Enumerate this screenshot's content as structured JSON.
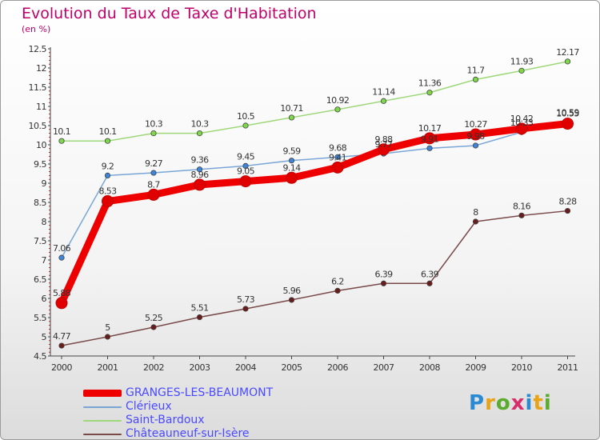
{
  "title": "Evolution du Taux de Taxe d'Habitation",
  "unit_label": "(en %)",
  "brand": {
    "letters": [
      "P",
      "r",
      "o",
      "x",
      "i",
      "t",
      "i"
    ],
    "colors": [
      "#2a8ad4",
      "#e8a317",
      "#5aab2e",
      "#d82c6b",
      "#2a8ad4",
      "#e8a317",
      "#5aab2e"
    ]
  },
  "chart_data": {
    "type": "line",
    "title": "Evolution du Taux de Taxe d'Habitation",
    "ylabel": "(en %)",
    "x": [
      "2000",
      "2001",
      "2002",
      "2003",
      "2004",
      "2005",
      "2006",
      "2007",
      "2008",
      "2009",
      "2010",
      "2011"
    ],
    "ylim": [
      4.5,
      12.5
    ],
    "yticks": [
      "4.5",
      "5",
      "5.5",
      "6",
      "6.5",
      "7",
      "7.5",
      "8",
      "8.5",
      "9",
      "9.5",
      "10",
      "10.5",
      "11",
      "11.5",
      "12",
      "12.5"
    ],
    "grid": false,
    "legend_position": "bottom-left",
    "series": [
      {
        "name": "GRANGES-LES-BEAUMONT",
        "color": "#ee0000",
        "width": 9,
        "marker_fill": "#e00000",
        "values": [
          5.88,
          8.53,
          8.7,
          8.96,
          9.05,
          9.14,
          9.41,
          9.88,
          10.17,
          10.27,
          10.42,
          10.55
        ],
        "labels": [
          "5.88",
          "8.53",
          "8.7",
          "8.96",
          "9.05",
          "9.14",
          "9.41",
          "9.88",
          "10.17",
          "10.27",
          "10.42",
          "10.55"
        ]
      },
      {
        "name": "Clérieux",
        "color": "#7aa6d6",
        "width": 1.5,
        "marker_fill": "#3d85d8",
        "values": [
          7.06,
          9.2,
          9.27,
          9.36,
          9.45,
          9.59,
          9.68,
          9.77,
          9.91,
          9.98,
          10.33,
          10.59
        ],
        "labels": [
          "7.06",
          "9.2",
          "9.27",
          "9.36",
          "9.45",
          "9.59",
          "9.68",
          "9.77",
          "9.91",
          "9.98",
          "10.33",
          "10.59"
        ]
      },
      {
        "name": "Saint-Bardoux",
        "color": "#9ed87a",
        "width": 1.5,
        "marker_fill": "#7ed84a",
        "values": [
          10.1,
          10.1,
          10.3,
          10.3,
          10.5,
          10.71,
          10.92,
          11.14,
          11.36,
          11.7,
          11.93,
          12.17
        ],
        "labels": [
          "10.1",
          "10.1",
          "10.3",
          "10.3",
          "10.5",
          "10.71",
          "10.92",
          "11.14",
          "11.36",
          "11.7",
          "11.93",
          "12.17"
        ]
      },
      {
        "name": "Châteauneuf-sur-Isère",
        "color": "#7a4a4a",
        "width": 1.5,
        "marker_fill": "#6a1c1c",
        "values": [
          4.77,
          5,
          5.25,
          5.51,
          5.73,
          5.96,
          6.2,
          6.39,
          6.39,
          8,
          8.16,
          8.28
        ],
        "labels": [
          "4.77",
          "5",
          "5.25",
          "5.51",
          "5.73",
          "5.96",
          "6.2",
          "6.39",
          "6.39",
          "8",
          "8.16",
          "8.28"
        ]
      }
    ]
  }
}
